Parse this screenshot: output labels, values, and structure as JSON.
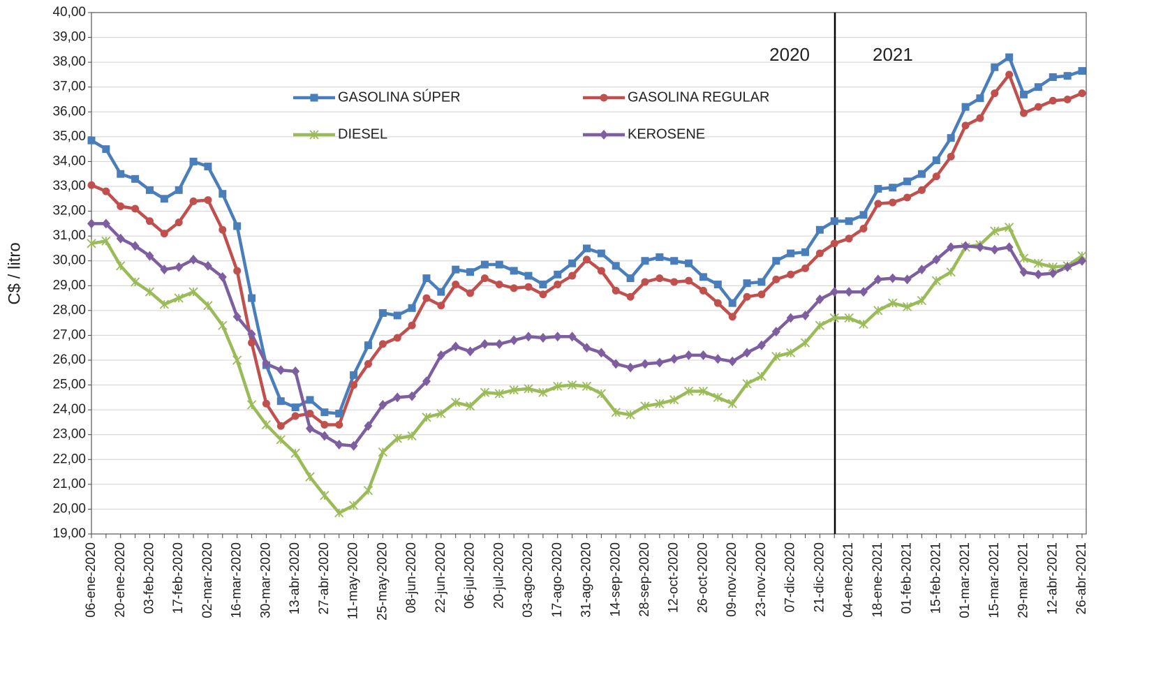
{
  "chart_data": {
    "type": "line",
    "y_label": "C$ / litro",
    "annotations": [
      "2020",
      "2021"
    ],
    "categories": [
      "06-ene-2020",
      null,
      "20-ene-2020",
      null,
      "03-feb-2020",
      null,
      "17-feb-2020",
      null,
      "02-mar-2020",
      null,
      "16-mar-2020",
      null,
      "30-mar-2020",
      null,
      "13-abr-2020",
      null,
      "27-abr-2020",
      null,
      "11-may-2020",
      null,
      "25-may-2020",
      null,
      "08-jun-2020",
      null,
      "22-jun-2020",
      null,
      "06-jul-2020",
      null,
      "20-jul-2020",
      null,
      "03-ago-2020",
      null,
      "17-ago-2020",
      null,
      "31-ago-2020",
      null,
      "14-sep-2020",
      null,
      "28-sep-2020",
      null,
      "12-oct-2020",
      null,
      "26-oct-2020",
      null,
      "09-nov-2020",
      null,
      "23-nov-2020",
      null,
      "07-dic-2020",
      null,
      "21-dic-2020",
      null,
      "04-ene-2021",
      null,
      "18-ene-2021",
      null,
      "01-feb-2021",
      null,
      "15-feb-2021",
      null,
      "01-mar-2021",
      null,
      "15-mar-2021",
      null,
      "29-mar-2021",
      null,
      "12-abr-2021",
      null,
      "26-abr-2021"
    ],
    "series": [
      {
        "name": "GASOLINA SÚPER",
        "color": "#4a7ebb",
        "marker": "square",
        "values": [
          34.85,
          34.5,
          33.5,
          33.3,
          32.85,
          32.5,
          32.85,
          34.0,
          33.8,
          32.7,
          31.4,
          28.5,
          25.8,
          24.35,
          24.1,
          24.4,
          23.9,
          23.85,
          25.4,
          26.6,
          27.9,
          27.8,
          28.1,
          29.3,
          28.75,
          29.65,
          29.55,
          29.85,
          29.85,
          29.6,
          29.4,
          29.05,
          29.45,
          29.9,
          30.5,
          30.3,
          29.8,
          29.3,
          30.0,
          30.15,
          30.0,
          29.9,
          29.35,
          29.05,
          28.3,
          29.1,
          29.15,
          30.0,
          30.3,
          30.35,
          31.25,
          31.6,
          31.6,
          31.85,
          32.9,
          32.95,
          33.2,
          33.5,
          34.05,
          34.95,
          36.2,
          36.55,
          37.8,
          38.2,
          36.7,
          37.0,
          37.4,
          37.45,
          37.65
        ]
      },
      {
        "name": "GASOLINA REGULAR",
        "color": "#c0504d",
        "marker": "circle",
        "values": [
          33.05,
          32.8,
          32.2,
          32.1,
          31.6,
          31.1,
          31.55,
          32.4,
          32.45,
          31.25,
          29.6,
          26.7,
          24.25,
          23.35,
          23.75,
          23.85,
          23.4,
          23.4,
          25.0,
          25.85,
          26.65,
          26.9,
          27.4,
          28.5,
          28.2,
          29.05,
          28.7,
          29.3,
          29.05,
          28.9,
          28.95,
          28.65,
          29.05,
          29.4,
          30.05,
          29.6,
          28.8,
          28.55,
          29.15,
          29.3,
          29.15,
          29.2,
          28.8,
          28.3,
          27.75,
          28.55,
          28.65,
          29.25,
          29.45,
          29.7,
          30.3,
          30.7,
          30.9,
          31.3,
          32.3,
          32.35,
          32.55,
          32.85,
          33.4,
          34.2,
          35.45,
          35.75,
          36.75,
          37.5,
          35.95,
          36.2,
          36.45,
          36.5,
          36.75
        ]
      },
      {
        "name": "DIESEL",
        "color": "#9bbb59",
        "marker": "star",
        "values": [
          30.7,
          30.8,
          29.8,
          29.15,
          28.75,
          28.25,
          28.5,
          28.75,
          28.2,
          27.4,
          26.0,
          24.2,
          23.4,
          22.8,
          22.25,
          21.3,
          20.55,
          19.85,
          20.15,
          20.75,
          22.3,
          22.85,
          22.95,
          23.7,
          23.85,
          24.3,
          24.15,
          24.7,
          24.65,
          24.8,
          24.85,
          24.7,
          24.95,
          25.0,
          24.95,
          24.65,
          23.9,
          23.8,
          24.15,
          24.25,
          24.4,
          24.75,
          24.75,
          24.5,
          24.25,
          25.05,
          25.35,
          26.15,
          26.3,
          26.7,
          27.4,
          27.7,
          27.7,
          27.45,
          28.0,
          28.3,
          28.15,
          28.4,
          29.2,
          29.55,
          30.55,
          30.65,
          31.2,
          31.35,
          30.1,
          29.9,
          29.75,
          29.8,
          30.2
        ]
      },
      {
        "name": "KEROSENE",
        "color": "#7d5fa0",
        "marker": "diamond",
        "values": [
          31.5,
          31.5,
          30.9,
          30.6,
          30.2,
          29.65,
          29.75,
          30.05,
          29.8,
          29.35,
          27.75,
          27.05,
          25.85,
          25.6,
          25.55,
          23.25,
          22.95,
          22.6,
          22.55,
          23.35,
          24.2,
          24.5,
          24.55,
          25.15,
          26.2,
          26.55,
          26.35,
          26.65,
          26.65,
          26.8,
          26.95,
          26.9,
          26.95,
          26.95,
          26.5,
          26.3,
          25.85,
          25.7,
          25.85,
          25.9,
          26.05,
          26.2,
          26.2,
          26.05,
          25.95,
          26.3,
          26.6,
          27.15,
          27.7,
          27.8,
          28.45,
          28.75,
          28.75,
          28.75,
          29.25,
          29.3,
          29.25,
          29.65,
          30.05,
          30.55,
          30.6,
          30.55,
          30.45,
          30.55,
          29.55,
          29.45,
          29.5,
          29.75,
          30.0
        ]
      }
    ],
    "ylim": [
      19,
      40
    ],
    "yticks": [
      {
        "value": 19,
        "label": "19,00"
      },
      {
        "value": 20,
        "label": "20,00"
      },
      {
        "value": 21,
        "label": "21,00"
      },
      {
        "value": 22,
        "label": "22,00"
      },
      {
        "value": 23,
        "label": "23,00"
      },
      {
        "value": 24,
        "label": "24,00"
      },
      {
        "value": 25,
        "label": "25,00"
      },
      {
        "value": 26,
        "label": "26,00"
      },
      {
        "value": 27,
        "label": "27,00"
      },
      {
        "value": 28,
        "label": "28,00"
      },
      {
        "value": 29,
        "label": "29,00"
      },
      {
        "value": 30,
        "label": "30,00"
      },
      {
        "value": 31,
        "label": "31,00"
      },
      {
        "value": 32,
        "label": "32,00"
      },
      {
        "value": 33,
        "label": "33,00"
      },
      {
        "value": 34,
        "label": "34,00"
      },
      {
        "value": 35,
        "label": "35,00"
      },
      {
        "value": 36,
        "label": "36,00"
      },
      {
        "value": 37,
        "label": "37,00"
      },
      {
        "value": 38,
        "label": "38,00"
      },
      {
        "value": 39,
        "label": "39,00"
      },
      {
        "value": 40,
        "label": "40,00"
      }
    ],
    "grid": true,
    "legend": "top"
  }
}
